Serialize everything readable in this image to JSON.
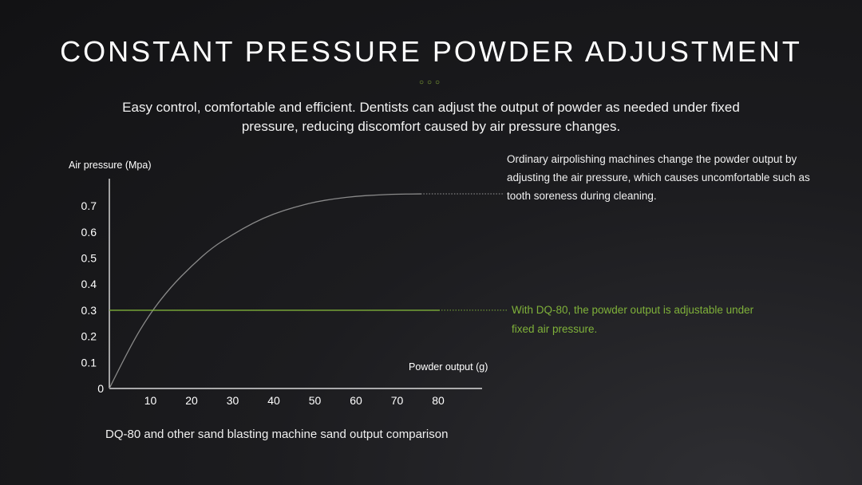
{
  "header": {
    "title": "CONSTANT PRESSURE POWDER ADJUSTMENT",
    "dots": "○○○",
    "subtitle": "Easy control, comfortable and efficient. Dentists can adjust the output of powder as needed under fixed pressure, reducing discomfort caused by air pressure changes."
  },
  "notes": {
    "ordinary": "Ordinary airpolishing machines change the powder output by adjusting the air pressure, which causes uncomfortable such as tooth soreness during cleaning.",
    "dq80": "With DQ-80, the powder output is adjustable under fixed air pressure."
  },
  "caption": "DQ-80 and other sand blasting machine sand output comparison",
  "colors": {
    "accent": "#7fb13a",
    "curve": "#8a8a8a",
    "axis": "#ffffff"
  },
  "chart_data": {
    "type": "line",
    "xlabel": "Powder output (g)",
    "ylabel": "Air pressure (Mpa)",
    "x_ticks": [
      "10",
      "20",
      "30",
      "40",
      "50",
      "60",
      "70",
      "80"
    ],
    "y_ticks": [
      "0",
      "0.1",
      "0.2",
      "0.3",
      "0.4",
      "0.5",
      "0.6",
      "0.7"
    ],
    "xlim": [
      0,
      90
    ],
    "ylim": [
      0,
      0.75
    ],
    "series": [
      {
        "x": [
          0,
          5,
          10,
          15,
          20,
          25,
          30,
          35,
          40,
          45,
          50,
          55,
          60,
          65,
          70,
          76
        ],
        "y": [
          0,
          0.16,
          0.29,
          0.39,
          0.47,
          0.54,
          0.59,
          0.635,
          0.67,
          0.695,
          0.715,
          0.728,
          0.737,
          0.742,
          0.745,
          0.746
        ]
      },
      {
        "x": [
          0,
          80
        ],
        "y": [
          0.3,
          0.3
        ]
      }
    ]
  }
}
